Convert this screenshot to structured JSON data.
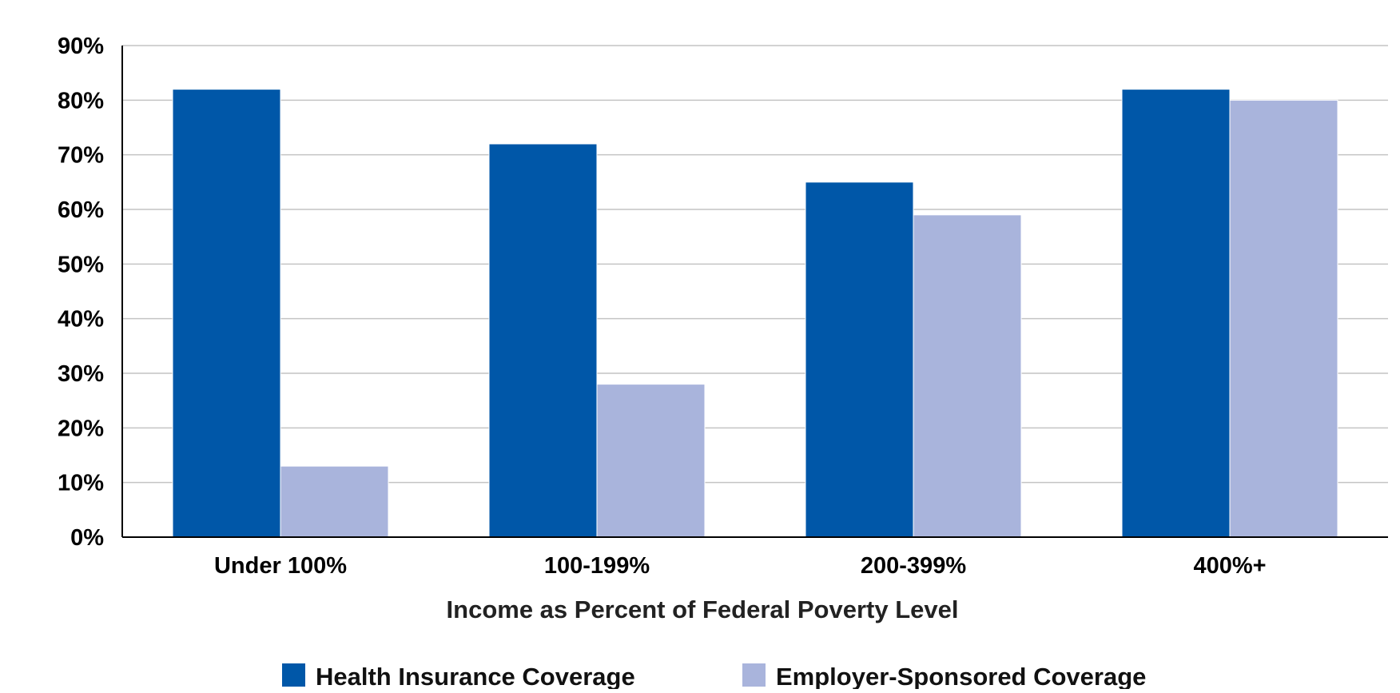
{
  "chart_data": {
    "type": "bar",
    "title": "",
    "xlabel": "Income as Percent of Federal Poverty Level",
    "ylabel": "",
    "categories": [
      "Under 100%",
      "100-199%",
      "200-399%",
      "400%+"
    ],
    "series": [
      {
        "name": "Health Insurance Coverage",
        "color": "#0057a8",
        "values": [
          82,
          72,
          65,
          82
        ]
      },
      {
        "name": "Employer-Sponsored Coverage",
        "color": "#a9b4dc",
        "values": [
          13,
          28,
          59,
          80
        ]
      }
    ],
    "ylim": [
      0,
      90
    ],
    "yticks": [
      0,
      10,
      20,
      30,
      40,
      50,
      60,
      70,
      80,
      90
    ],
    "ytick_labels": [
      "0%",
      "10%",
      "20%",
      "30%",
      "40%",
      "50%",
      "60%",
      "70%",
      "80%",
      "90%"
    ],
    "grid": true,
    "legend": "bottom"
  }
}
